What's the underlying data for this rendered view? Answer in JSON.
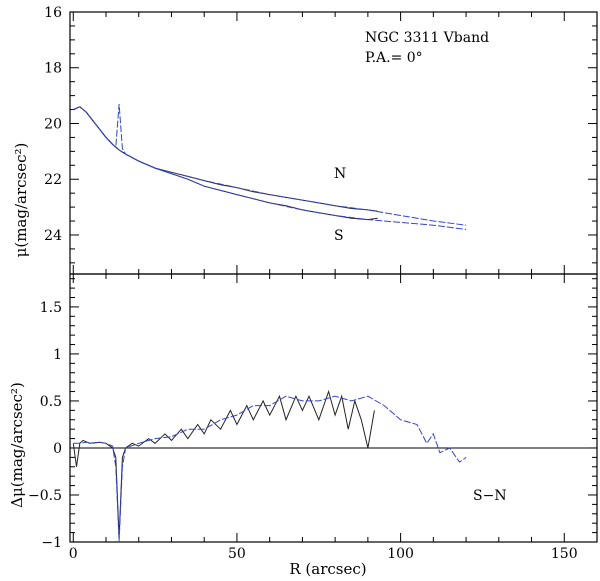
{
  "chart_data": [
    {
      "type": "line",
      "panel": "top",
      "title": "",
      "annotations": [
        "NGC 3311 Vband",
        "P.A.= 0°",
        "N",
        "S"
      ],
      "xlabel": "",
      "ylabel": "μ(mag/arcsec²)",
      "xlim": [
        -1,
        160
      ],
      "ylim": [
        25.4,
        16
      ],
      "y_inverted": true,
      "yticks": [
        16,
        18,
        20,
        22,
        24
      ],
      "ytick_labels": [
        "16",
        "18",
        "20",
        "22",
        "24"
      ],
      "series": [
        {
          "name": "N black",
          "style": "solid",
          "color": "#222222",
          "x": [
            0,
            2,
            4,
            6,
            8,
            10,
            12,
            14,
            16,
            20,
            25,
            30,
            35,
            40,
            45,
            50,
            55,
            60,
            65,
            70,
            75,
            80,
            85,
            90,
            93
          ],
          "y": [
            19.5,
            19.4,
            19.6,
            19.9,
            20.2,
            20.5,
            20.75,
            20.95,
            21.1,
            21.35,
            21.6,
            21.75,
            21.9,
            22.05,
            22.2,
            22.3,
            22.45,
            22.55,
            22.65,
            22.75,
            22.85,
            22.95,
            23.05,
            23.1,
            23.15
          ]
        },
        {
          "name": "S black",
          "style": "solid",
          "color": "#222222",
          "x": [
            0,
            2,
            4,
            6,
            8,
            10,
            12,
            14,
            16,
            20,
            25,
            30,
            35,
            40,
            45,
            50,
            55,
            60,
            65,
            70,
            75,
            80,
            85,
            90,
            93
          ],
          "y": [
            19.5,
            19.4,
            19.6,
            19.9,
            20.2,
            20.5,
            20.75,
            20.95,
            21.1,
            21.35,
            21.6,
            21.8,
            22.0,
            22.25,
            22.4,
            22.55,
            22.7,
            22.85,
            22.95,
            23.1,
            23.2,
            23.3,
            23.4,
            23.45,
            23.4
          ]
        },
        {
          "name": "N blue",
          "style": "dashed",
          "color": "#3344cc",
          "x": [
            0,
            2,
            4,
            6,
            8,
            10,
            12,
            13,
            14,
            15,
            16,
            20,
            25,
            30,
            35,
            40,
            50,
            60,
            70,
            80,
            90,
            100,
            110,
            120
          ],
          "y": [
            19.5,
            19.4,
            19.6,
            19.9,
            20.2,
            20.5,
            20.75,
            20.85,
            19.3,
            20.9,
            21.1,
            21.35,
            21.6,
            21.75,
            21.9,
            22.05,
            22.3,
            22.55,
            22.75,
            22.95,
            23.1,
            23.3,
            23.5,
            23.65
          ]
        },
        {
          "name": "S blue",
          "style": "dashed",
          "color": "#3344cc",
          "x": [
            0,
            2,
            4,
            6,
            8,
            10,
            12,
            14,
            16,
            20,
            25,
            30,
            35,
            40,
            50,
            60,
            70,
            80,
            90,
            100,
            110,
            120
          ],
          "y": [
            19.5,
            19.4,
            19.6,
            19.9,
            20.2,
            20.5,
            20.75,
            20.95,
            21.1,
            21.35,
            21.6,
            21.8,
            22.0,
            22.25,
            22.55,
            22.85,
            23.1,
            23.3,
            23.45,
            23.55,
            23.65,
            23.8
          ]
        }
      ]
    },
    {
      "type": "line",
      "panel": "bottom",
      "title": "",
      "annotations": [
        "S−N"
      ],
      "xlabel": "R (arcsec)",
      "ylabel": "Δμ(mag/arcsec²)",
      "xlim": [
        -1,
        160
      ],
      "ylim": [
        -1,
        1.85
      ],
      "xticks": [
        0,
        50,
        100,
        150
      ],
      "xtick_labels": [
        "0",
        "50",
        "100",
        "150"
      ],
      "yticks": [
        -1,
        -0.5,
        0,
        0.5,
        1,
        1.5
      ],
      "ytick_labels": [
        "−1",
        "−0.5",
        "0",
        "0.5",
        "1",
        "1.5"
      ],
      "reference_line": 0,
      "series": [
        {
          "name": "S−N black",
          "style": "solid",
          "color": "#222222",
          "x": [
            0,
            1,
            2,
            3,
            5,
            8,
            10,
            12,
            13,
            14,
            15,
            16,
            18,
            20,
            23,
            25,
            28,
            30,
            33,
            35,
            38,
            40,
            42,
            45,
            48,
            50,
            53,
            55,
            58,
            60,
            63,
            65,
            68,
            70,
            72,
            75,
            78,
            80,
            82,
            84,
            86,
            88,
            90,
            92
          ],
          "y": [
            0.05,
            -0.2,
            0.05,
            0.08,
            0.05,
            0.06,
            0.05,
            0.0,
            -0.1,
            -0.95,
            -0.1,
            0.0,
            0.05,
            0.02,
            0.1,
            0.05,
            0.15,
            0.08,
            0.2,
            0.1,
            0.25,
            0.15,
            0.3,
            0.2,
            0.4,
            0.25,
            0.45,
            0.3,
            0.5,
            0.35,
            0.55,
            0.3,
            0.55,
            0.4,
            0.55,
            0.3,
            0.6,
            0.35,
            0.55,
            0.2,
            0.5,
            0.3,
            0.0,
            0.4
          ]
        },
        {
          "name": "S−N blue",
          "style": "dashed",
          "color": "#3344cc",
          "x": [
            0,
            2,
            4,
            6,
            8,
            10,
            12,
            13,
            14,
            15,
            16,
            20,
            25,
            30,
            35,
            40,
            45,
            50,
            55,
            60,
            65,
            70,
            75,
            80,
            85,
            90,
            95,
            100,
            105,
            108,
            110,
            112,
            115,
            117,
            118,
            120
          ],
          "y": [
            0.05,
            0.05,
            0.06,
            0.05,
            0.06,
            0.05,
            0.02,
            -0.2,
            -1.0,
            -0.2,
            0.0,
            0.05,
            0.1,
            0.12,
            0.2,
            0.2,
            0.3,
            0.35,
            0.45,
            0.45,
            0.55,
            0.5,
            0.5,
            0.55,
            0.5,
            0.55,
            0.45,
            0.3,
            0.25,
            0.05,
            0.15,
            -0.05,
            0.0,
            -0.1,
            -0.15,
            -0.1
          ]
        }
      ]
    }
  ]
}
